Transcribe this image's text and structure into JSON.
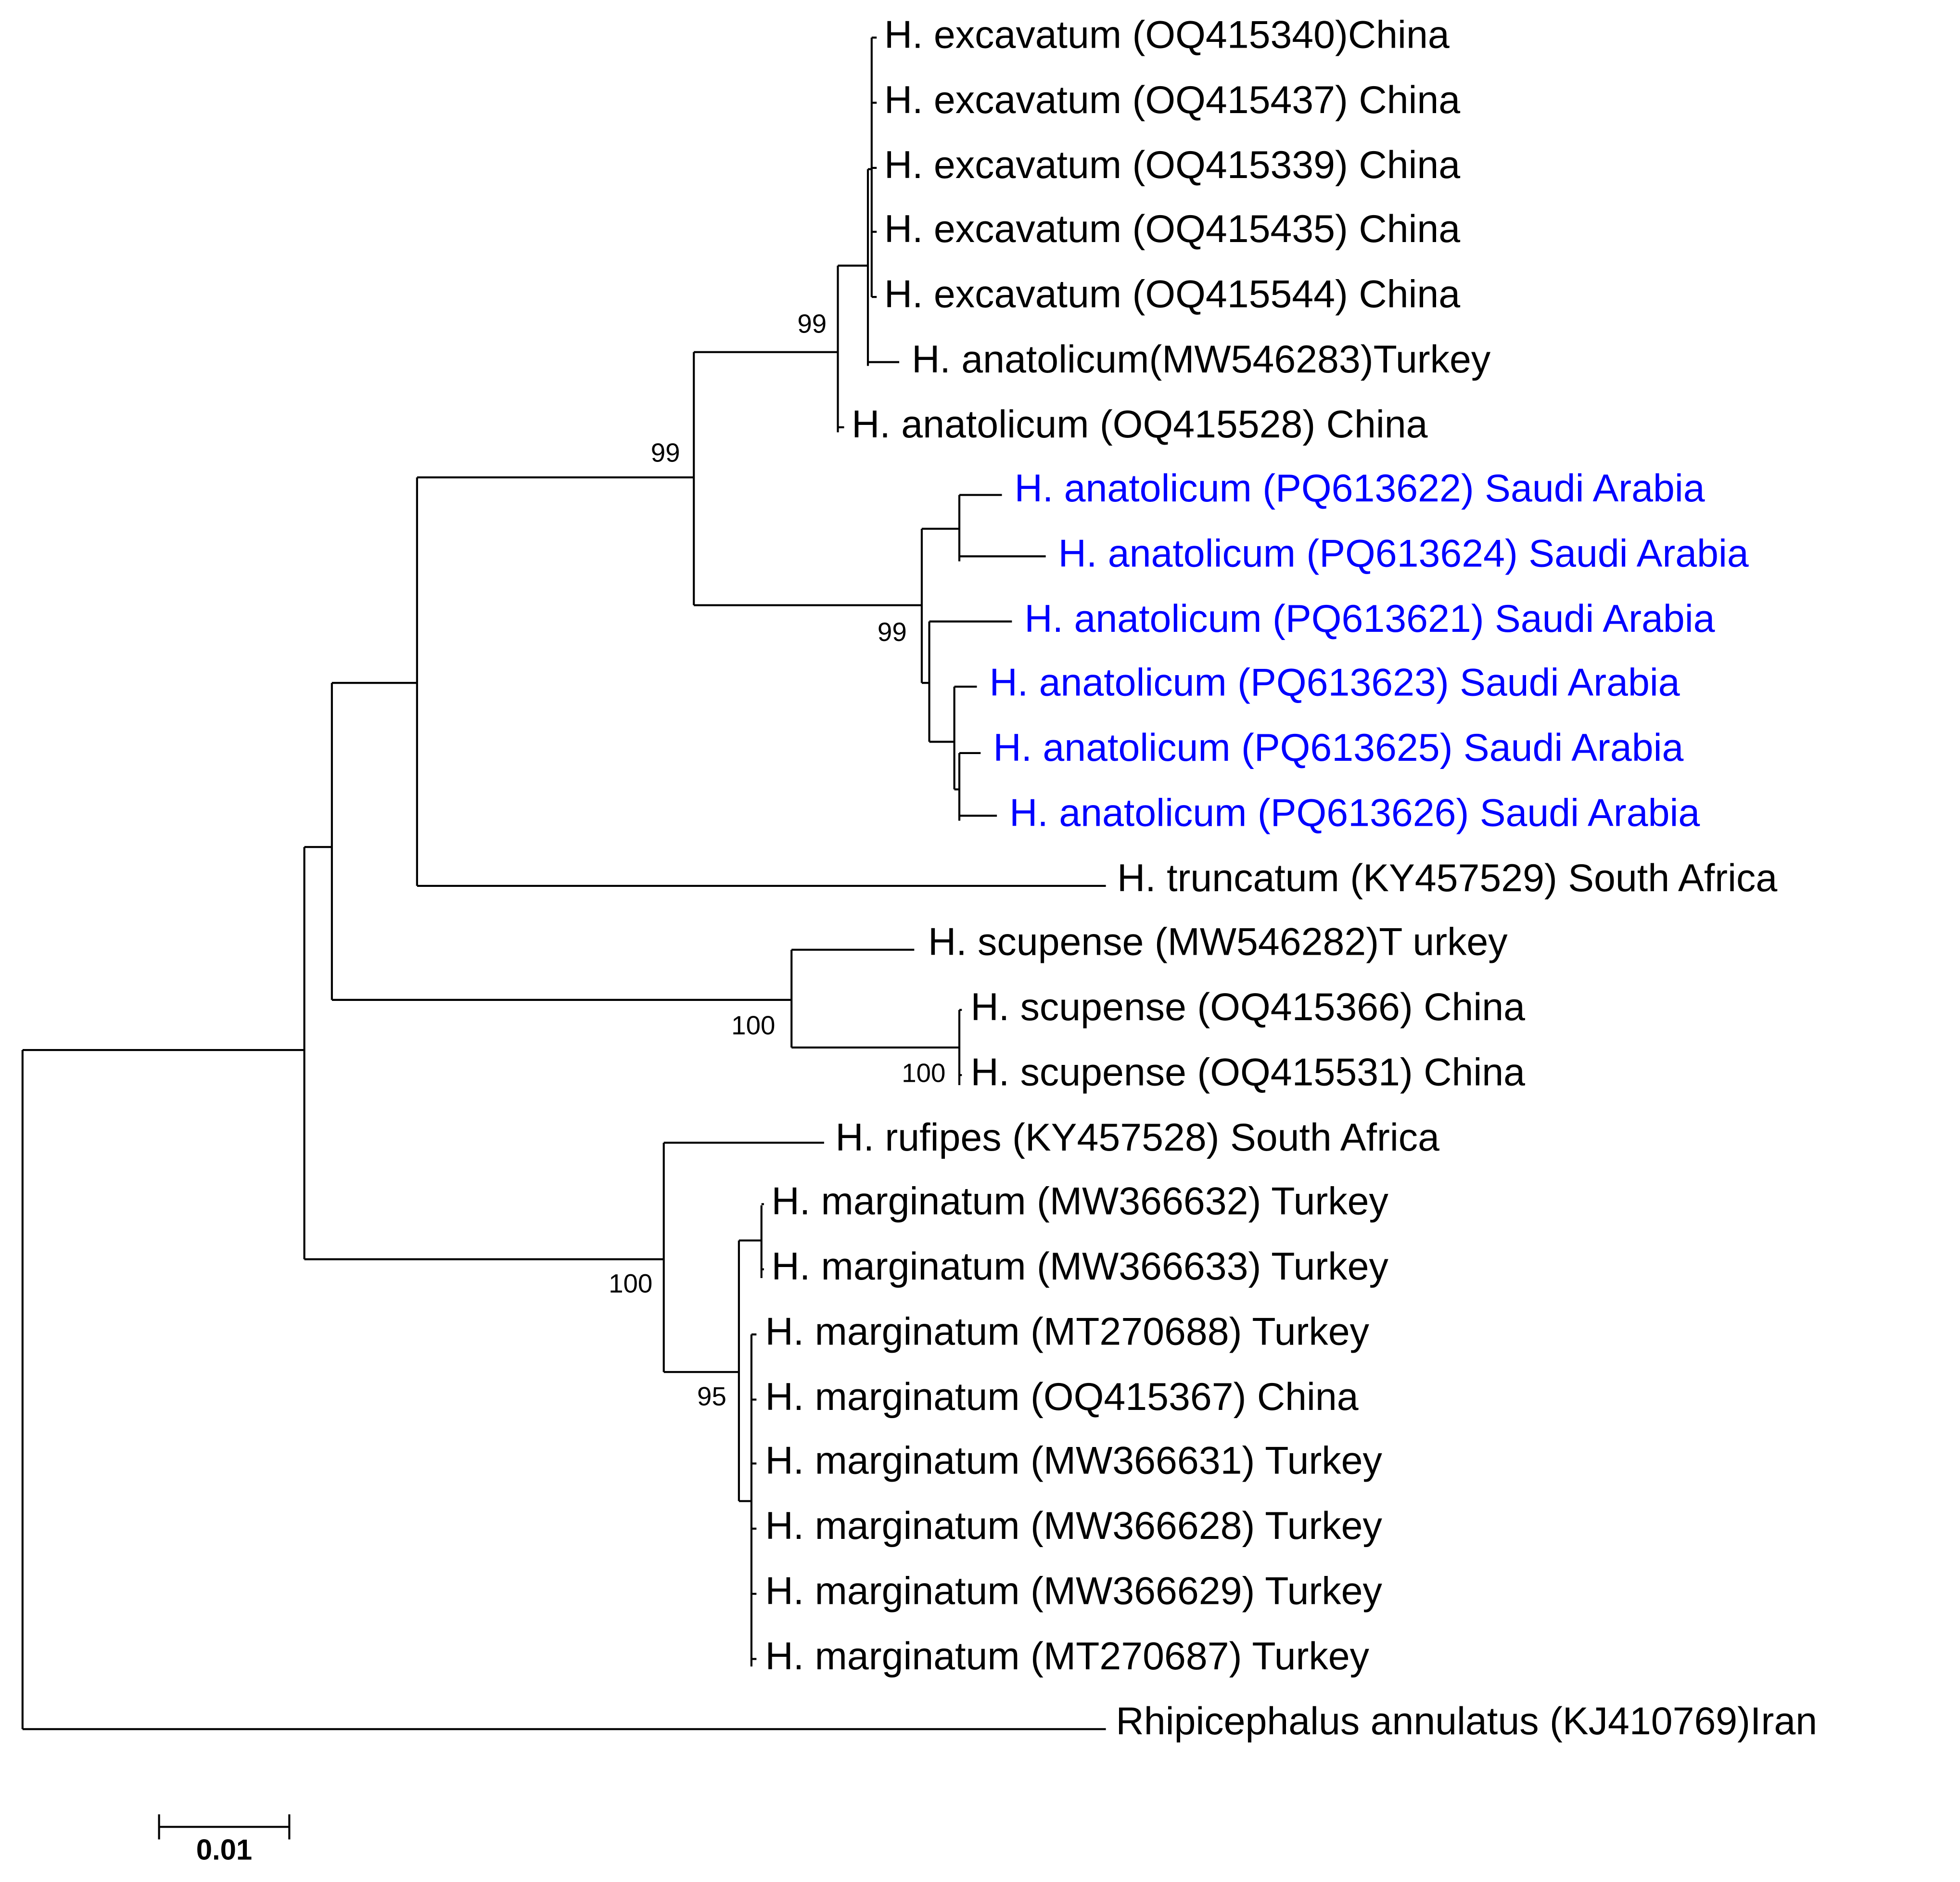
{
  "tree": {
    "leaves": [
      "H. excavatum (OQ415340)China",
      "H. excavatum (OQ415437) China",
      "H. excavatum (OQ415339) China",
      "H. excavatum (OQ415435) China",
      "H. excavatum (OQ415544) China",
      "H. anatolicum(MW546283)Turkey",
      "H. anatolicum (OQ415528) China",
      "H. anatolicum (PQ613622) Saudi Arabia",
      "H. anatolicum (PQ613624) Saudi Arabia",
      "H. anatolicum (PQ613621) Saudi Arabia",
      "H. anatolicum (PQ613623) Saudi Arabia",
      "H. anatolicum (PQ613625) Saudi Arabia",
      "H. anatolicum (PQ613626) Saudi Arabia",
      "H. truncatum (KY457529) South Africa",
      "H. scupense (MW546282)T urkey",
      "H. scupense (OQ415366) China",
      "H. scupense (OQ415531) China",
      "H. rufipes (KY457528) South Africa",
      "H. marginatum (MW366632) Turkey",
      "H. marginatum (MW366633) Turkey",
      "H. marginatum (MT270688) Turkey",
      "H. marginatum (OQ415367) China",
      "H. marginatum (MW366631) Turkey",
      "H. marginatum (MW366628) Turkey",
      "H. marginatum (MW366629) Turkey",
      "H. marginatum (MT270687) Turkey",
      "Rhipicephalus annulatus (KJ410769)Iran"
    ],
    "bootstrap": [
      99,
      99,
      99,
      100,
      100,
      100,
      95
    ],
    "scale_bar": 0.01
  }
}
